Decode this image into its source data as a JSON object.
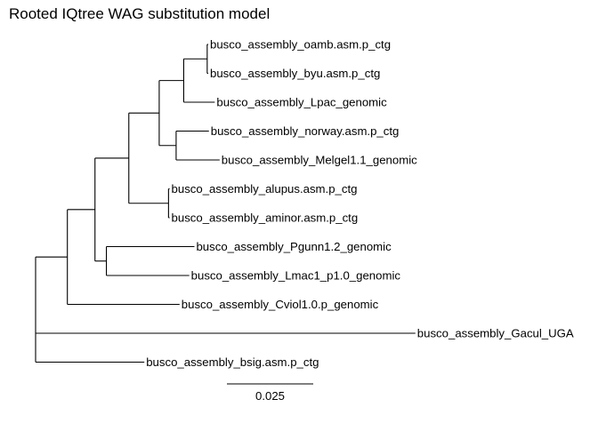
{
  "title": "Rooted IQtree WAG substitution model",
  "colors": {
    "background": "#ffffff",
    "ink": "#000000"
  },
  "chart_data": {
    "type": "phylogenetic-tree",
    "title": "Rooted IQtree WAG substitution model",
    "scale_bar": {
      "length": 0.025,
      "label": "0.025"
    },
    "tips": [
      "busco_assembly_oamb.asm.p_ctg",
      "busco_assembly_byu.asm.p_ctg",
      "busco_assembly_Lpac_genomic",
      "busco_assembly_norway.asm.p_ctg",
      "busco_assembly_Melgel1.1_genomic",
      "busco_assembly_alupus.asm.p_ctg",
      "busco_assembly_aminor.asm.p_ctg",
      "busco_assembly_Pgunn1.2_genomic",
      "busco_assembly_Lmac1_p1.0_genomic",
      "busco_assembly_Cviol1.0.p_genomic",
      "busco_assembly_Gacul_UGA",
      "busco_assembly_bsig.asm.p_ctg"
    ],
    "tree": {
      "id": "root",
      "length": 0,
      "children": [
        {
          "id": "n_main",
          "length": 0.0092,
          "children": [
            {
              "id": "n_a",
              "length": 0.008,
              "children": [
                {
                  "id": "n_b",
                  "length": 0.0098,
                  "children": [
                    {
                      "id": "n_c",
                      "length": 0.0088,
                      "children": [
                        {
                          "id": "n_d",
                          "length": 0.0071,
                          "children": [
                            {
                              "id": "n_e",
                              "length": 0.0068,
                              "children": [
                                {
                                  "tip": 0,
                                  "length": 0.0003
                                },
                                {
                                  "tip": 1,
                                  "length": 0.0003
                                }
                              ]
                            },
                            {
                              "tip": 2,
                              "length": 0.009
                            }
                          ]
                        },
                        {
                          "id": "n_f",
                          "length": 0.0049,
                          "children": [
                            {
                              "tip": 3,
                              "length": 0.0095
                            },
                            {
                              "tip": 4,
                              "length": 0.0126
                            }
                          ]
                        }
                      ]
                    },
                    {
                      "id": "n_g",
                      "length": 0.0115,
                      "children": [
                        {
                          "tip": 5,
                          "length": 0.0003
                        },
                        {
                          "tip": 6,
                          "length": 0.0003
                        }
                      ]
                    }
                  ]
                },
                {
                  "id": "n_h",
                  "length": 0.0033,
                  "children": [
                    {
                      "tip": 7,
                      "length": 0.0255
                    },
                    {
                      "tip": 8,
                      "length": 0.024
                    }
                  ]
                }
              ]
            },
            {
              "tip": 9,
              "length": 0.0325
            }
          ]
        },
        {
          "tip": 10,
          "length": 0.11
        },
        {
          "tip": 11,
          "length": 0.0315
        }
      ]
    }
  }
}
